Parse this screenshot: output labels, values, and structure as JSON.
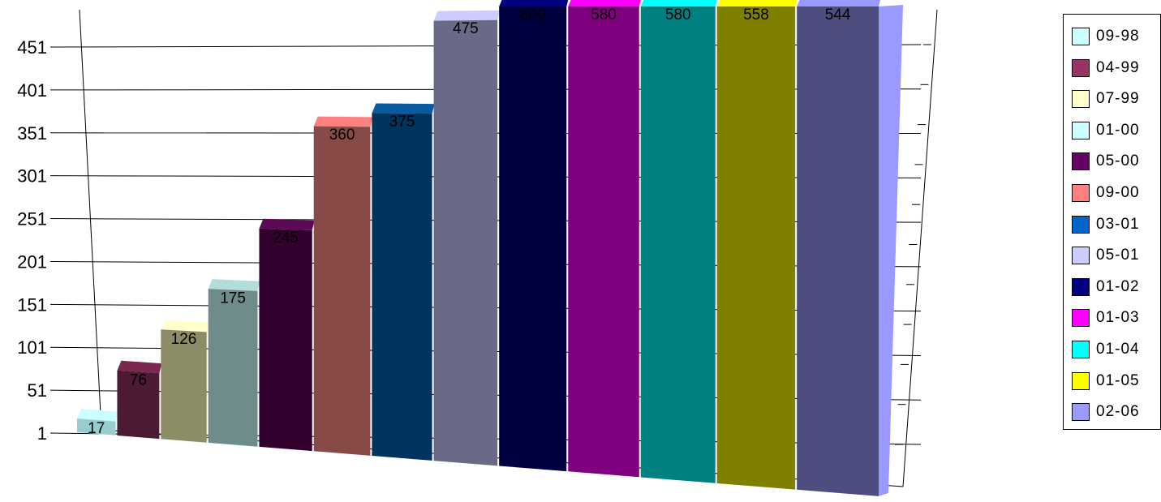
{
  "chart_data": {
    "type": "bar",
    "style": "3d-perspective",
    "categories": [
      "09-98",
      "04-99",
      "07-99",
      "01-00",
      "05-00",
      "09-00",
      "03-01",
      "05-01",
      "01-02",
      "01-03",
      "01-04",
      "01-05",
      "02-06"
    ],
    "values": [
      17,
      76,
      126,
      175,
      245,
      360,
      375,
      475,
      600,
      580,
      580,
      558,
      544
    ],
    "data_labels": [
      "17",
      "76",
      "126",
      "175",
      "245",
      "360",
      "375",
      "475",
      "600",
      "580",
      "580",
      "558",
      "544"
    ],
    "y_ticks": [
      "1",
      "51",
      "101",
      "151",
      "201",
      "251",
      "301",
      "351",
      "401",
      "451"
    ],
    "ylim": [
      1,
      501
    ],
    "legend_position": "right",
    "legend_colors": [
      "#ccffff",
      "#993366",
      "#ffffcc",
      "#ccffff",
      "#660066",
      "#ff8080",
      "#0066cc",
      "#ccccff",
      "#000080",
      "#ff00ff",
      "#00ffff",
      "#ffff00",
      "#9999ff"
    ],
    "bar_face_colors": [
      "#99cccc",
      "#4d1a33",
      "#8c8c66",
      "#6e8c8c",
      "#33002e",
      "#874a47",
      "#00335e",
      "#6a6a88",
      "#000040",
      "#800080",
      "#008080",
      "#808000",
      "#4d4d80"
    ],
    "bar_top_colors": [
      "#ccffff",
      "#7a2850",
      "#ffffcc",
      "#b4dcdc",
      "#5c0a55",
      "#ff8080",
      "#0a5aa0",
      "#ccccff",
      "#000080",
      "#ff00ff",
      "#00ffff",
      "#ffff00",
      "#9999ff"
    ],
    "title": "",
    "xlabel": "",
    "ylabel": ""
  }
}
